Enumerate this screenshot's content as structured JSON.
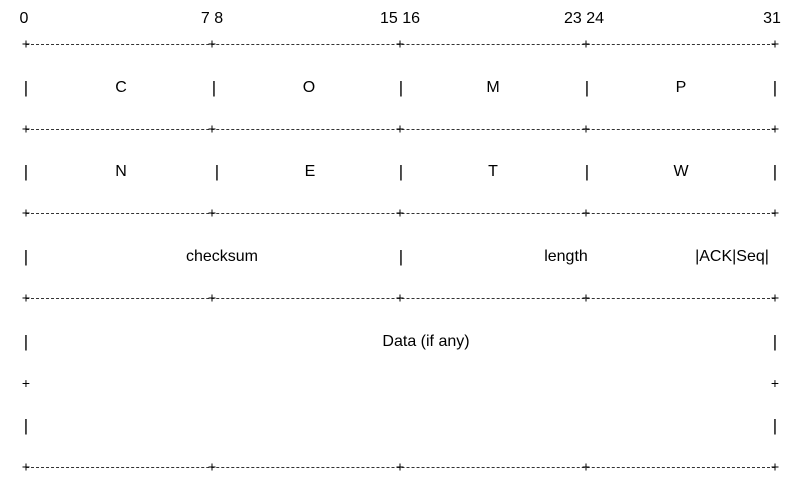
{
  "bit_labels": {
    "b0": "0",
    "b7_8": "7 8",
    "b15_16": "15 16",
    "b23_24": "23 24",
    "b31": "31"
  },
  "row1": {
    "c1": "C",
    "c2": "O",
    "c3": "M",
    "c4": "P"
  },
  "row2": {
    "c1": "N",
    "c2": "E",
    "c3": "T",
    "c4": "W"
  },
  "row3": {
    "checksum": "checksum",
    "length": "length",
    "flags": "|ACK|Seq|"
  },
  "row4": {
    "data": "Data (if any)"
  },
  "glyphs": {
    "pipe": "|",
    "plus": "+"
  }
}
